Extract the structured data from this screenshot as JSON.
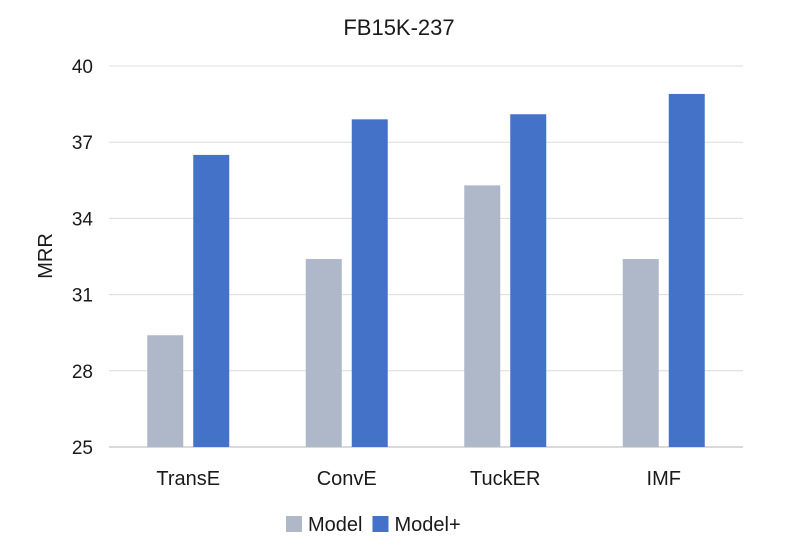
{
  "chart_data": {
    "type": "bar",
    "title": "FB15K-237",
    "xlabel": "",
    "ylabel": "MRR",
    "categories": [
      "TransE",
      "ConvE",
      "TuckER",
      "IMF"
    ],
    "series": [
      {
        "name": "Model",
        "values": [
          29.4,
          32.4,
          35.3,
          32.4
        ],
        "color": "#aeb8c9"
      },
      {
        "name": "Model+",
        "values": [
          36.5,
          37.9,
          38.1,
          38.9
        ],
        "color": "#4472c8"
      }
    ],
    "ylim": [
      25,
      40
    ],
    "yticks": [
      "25",
      "28",
      "31",
      "34",
      "37",
      "40"
    ],
    "grid": true,
    "legend": "bottom"
  }
}
